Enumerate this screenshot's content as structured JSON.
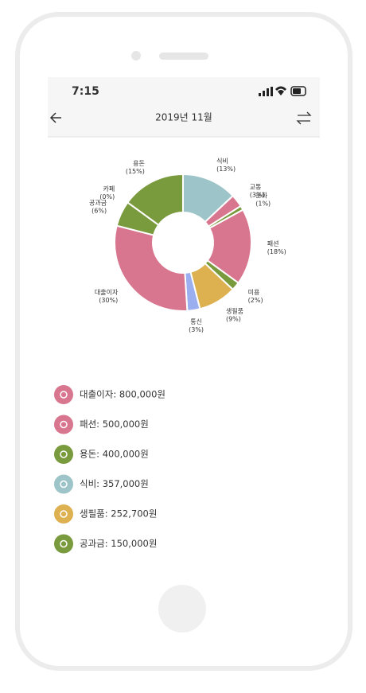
{
  "status": {
    "time": "7:15"
  },
  "header": {
    "title": "2019년 11월"
  },
  "chart_data": {
    "type": "donut",
    "categories": [
      "식비",
      "교통",
      "문화",
      "패션",
      "미용",
      "생필품",
      "통신",
      "대출이자",
      "공과금",
      "카페",
      "용돈"
    ],
    "values": [
      13,
      3,
      1,
      18,
      2,
      9,
      3,
      30,
      6,
      0,
      15
    ],
    "value_labels": [
      "(13%)",
      "(3%)",
      "(1%)",
      "(18%)",
      "(2%)",
      "(9%)",
      "(3%)",
      "(30%)",
      "(6%)",
      "(0%)",
      "(15%)"
    ],
    "colors": [
      "#9dc4c8",
      "#d9768f",
      "#7a9a3e",
      "#d9768f",
      "#7a9a3e",
      "#ddb050",
      "#9aaef0",
      "#d9768f",
      "#7a9a3e",
      "#9dc4c8",
      "#7a9a3e"
    ]
  },
  "list": {
    "items": [
      {
        "label": "대출이자: 800,000원",
        "color": "#d9768f"
      },
      {
        "label": "패션: 500,000원",
        "color": "#d9768f"
      },
      {
        "label": "용돈: 400,000원",
        "color": "#7a9a3e"
      },
      {
        "label": "식비: 357,000원",
        "color": "#9dc4c8"
      },
      {
        "label": "생필품: 252,700원",
        "color": "#ddb050"
      },
      {
        "label": "공과금: 150,000원",
        "color": "#7a9a3e"
      }
    ]
  }
}
